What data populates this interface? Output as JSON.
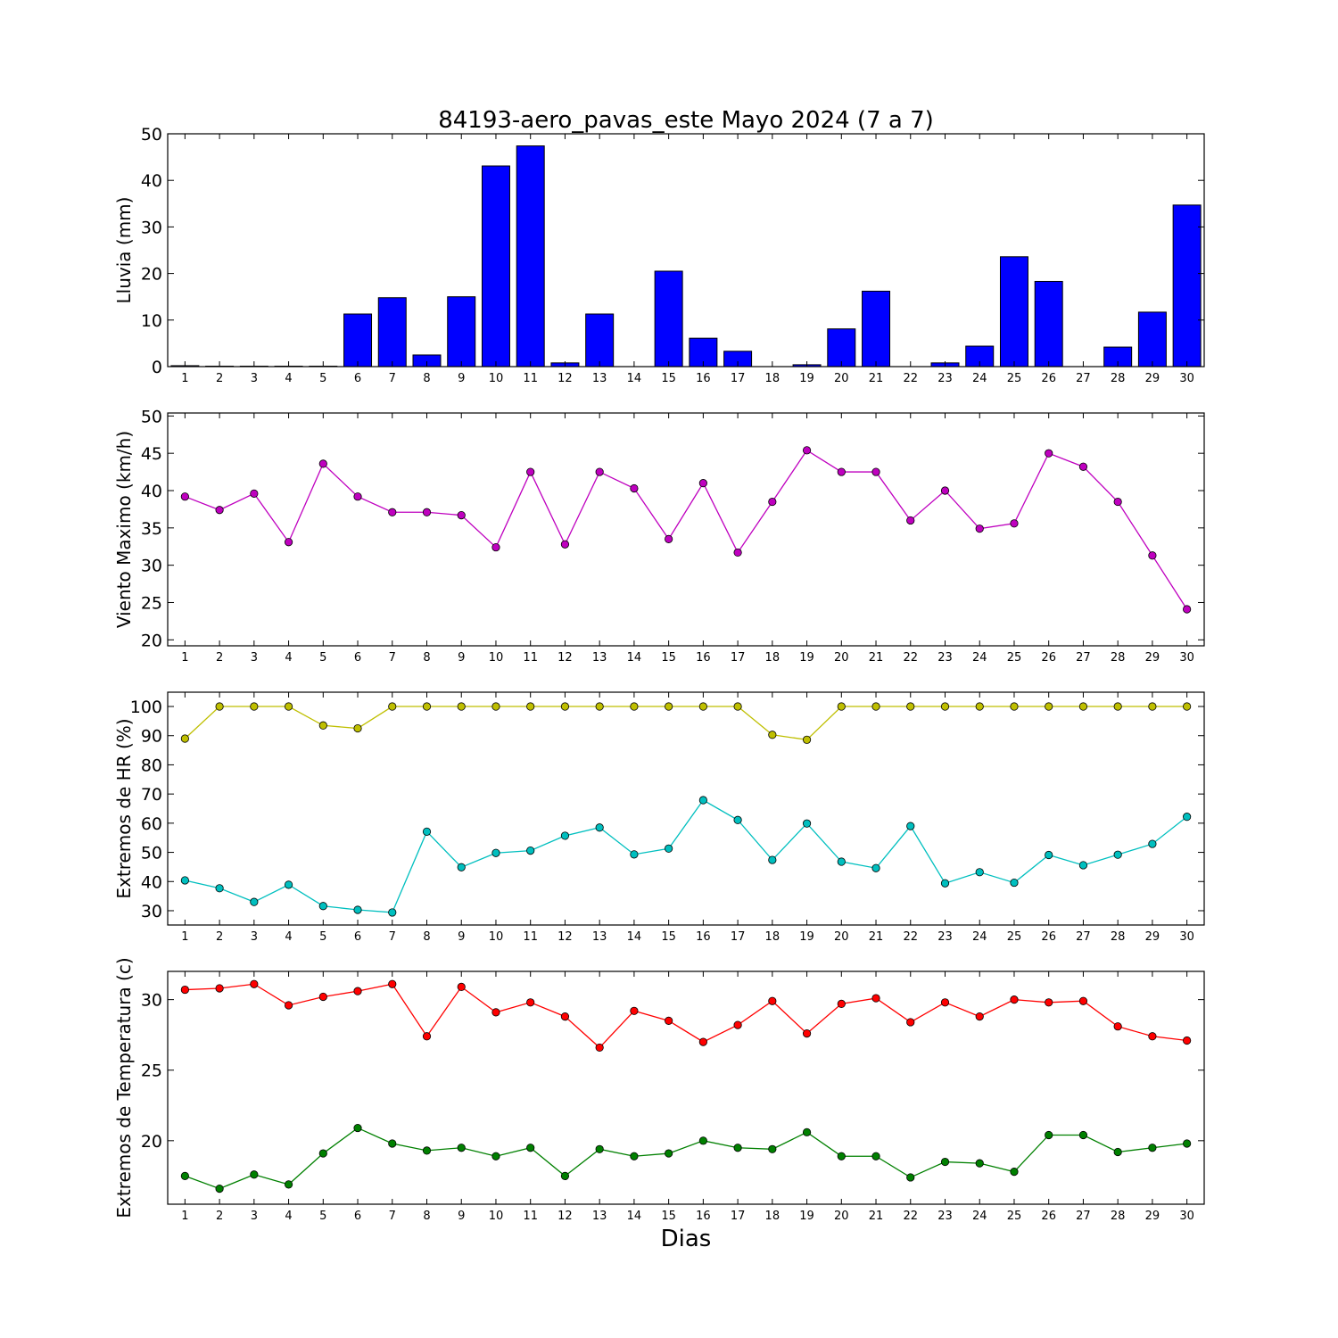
{
  "title": "84193-aero_pavas_este Mayo 2024  (7 a 7)",
  "xlabel": "Dias",
  "chart_data": [
    {
      "type": "bar",
      "ylabel": "Lluvia (mm)",
      "x": [
        1,
        2,
        3,
        4,
        5,
        6,
        7,
        8,
        9,
        10,
        11,
        12,
        13,
        14,
        15,
        16,
        17,
        18,
        19,
        20,
        21,
        22,
        23,
        24,
        25,
        26,
        27,
        28,
        29,
        30
      ],
      "ylim": [
        0,
        50
      ],
      "yticks": [
        0,
        10,
        20,
        30,
        40,
        50
      ],
      "grid": false,
      "series": [
        {
          "color": "#0000ff",
          "values": [
            0.2,
            0.1,
            0.1,
            0.1,
            0.1,
            11.3,
            14.8,
            2.5,
            15.0,
            43.1,
            47.4,
            0.8,
            11.3,
            0.0,
            20.5,
            6.1,
            3.3,
            0.0,
            0.4,
            8.1,
            16.2,
            0.0,
            0.8,
            4.4,
            23.6,
            18.3,
            0.0,
            4.2,
            11.7,
            34.7
          ]
        }
      ]
    },
    {
      "type": "line",
      "ylabel": "Viento Maximo (km/h)",
      "x": [
        1,
        2,
        3,
        4,
        5,
        6,
        7,
        8,
        9,
        10,
        11,
        12,
        13,
        14,
        15,
        16,
        17,
        18,
        19,
        20,
        21,
        22,
        23,
        24,
        25,
        26,
        27,
        28,
        29,
        30
      ],
      "ylim": [
        19.2,
        50.4
      ],
      "yticks": [
        20,
        25,
        30,
        35,
        40,
        45,
        50
      ],
      "grid": false,
      "series": [
        {
          "color": "#bf00bf",
          "values": [
            39.2,
            37.4,
            39.6,
            33.1,
            43.6,
            39.2,
            37.1,
            37.1,
            36.7,
            32.4,
            42.5,
            32.8,
            42.5,
            40.3,
            33.5,
            41.0,
            31.7,
            38.5,
            45.4,
            42.5,
            42.5,
            36.0,
            40.0,
            34.9,
            35.6,
            45.0,
            43.2,
            38.5,
            31.3,
            24.1
          ]
        }
      ]
    },
    {
      "type": "line",
      "ylabel": "Extremos de HR (%)",
      "x": [
        1,
        2,
        3,
        4,
        5,
        6,
        7,
        8,
        9,
        10,
        11,
        12,
        13,
        14,
        15,
        16,
        17,
        18,
        19,
        20,
        21,
        22,
        23,
        24,
        25,
        26,
        27,
        28,
        29,
        30
      ],
      "ylim": [
        25.1,
        104.9
      ],
      "yticks": [
        30,
        40,
        50,
        60,
        70,
        80,
        90,
        100
      ],
      "grid": false,
      "series": [
        {
          "color": "#bfbf00",
          "values": [
            89,
            100,
            100,
            100,
            93.5,
            92.5,
            100,
            100,
            100,
            100,
            100,
            100,
            100,
            100,
            100,
            100,
            100,
            90.3,
            88.6,
            100,
            100,
            100,
            100,
            100,
            100,
            100,
            100,
            100,
            100,
            100
          ]
        },
        {
          "color": "#00bfbf",
          "values": [
            40.4,
            37.7,
            33.0,
            38.9,
            31.6,
            30.3,
            29.4,
            57.1,
            44.9,
            49.8,
            50.6,
            55.7,
            58.5,
            49.3,
            51.3,
            67.9,
            61.1,
            47.4,
            59.9,
            46.8,
            44.6,
            59.0,
            39.4,
            43.2,
            39.6,
            49.1,
            45.6,
            49.2,
            52.9,
            62.2
          ]
        }
      ]
    },
    {
      "type": "line",
      "ylabel": "Extremos de Temperatura (c)",
      "x": [
        1,
        2,
        3,
        4,
        5,
        6,
        7,
        8,
        9,
        10,
        11,
        12,
        13,
        14,
        15,
        16,
        17,
        18,
        19,
        20,
        21,
        22,
        23,
        24,
        25,
        26,
        27,
        28,
        29,
        30
      ],
      "ylim": [
        15.5,
        32.0
      ],
      "yticks": [
        20,
        25,
        30
      ],
      "grid": false,
      "series": [
        {
          "color": "#ff0000",
          "values": [
            30.7,
            30.8,
            31.1,
            29.6,
            30.2,
            30.6,
            31.1,
            27.4,
            30.9,
            29.1,
            29.8,
            28.8,
            26.6,
            29.2,
            28.5,
            27.0,
            28.2,
            29.9,
            27.6,
            29.7,
            30.1,
            28.4,
            29.8,
            28.8,
            30.0,
            29.8,
            29.9,
            28.1,
            27.4,
            27.1
          ]
        },
        {
          "color": "#008000",
          "values": [
            17.5,
            16.6,
            17.6,
            16.9,
            19.1,
            20.9,
            19.8,
            19.3,
            19.5,
            18.9,
            19.5,
            17.5,
            19.4,
            18.9,
            19.1,
            20.0,
            19.5,
            19.4,
            20.6,
            18.9,
            18.9,
            17.4,
            18.5,
            18.4,
            17.8,
            20.4,
            20.4,
            19.2,
            19.5,
            19.8
          ]
        }
      ]
    }
  ]
}
